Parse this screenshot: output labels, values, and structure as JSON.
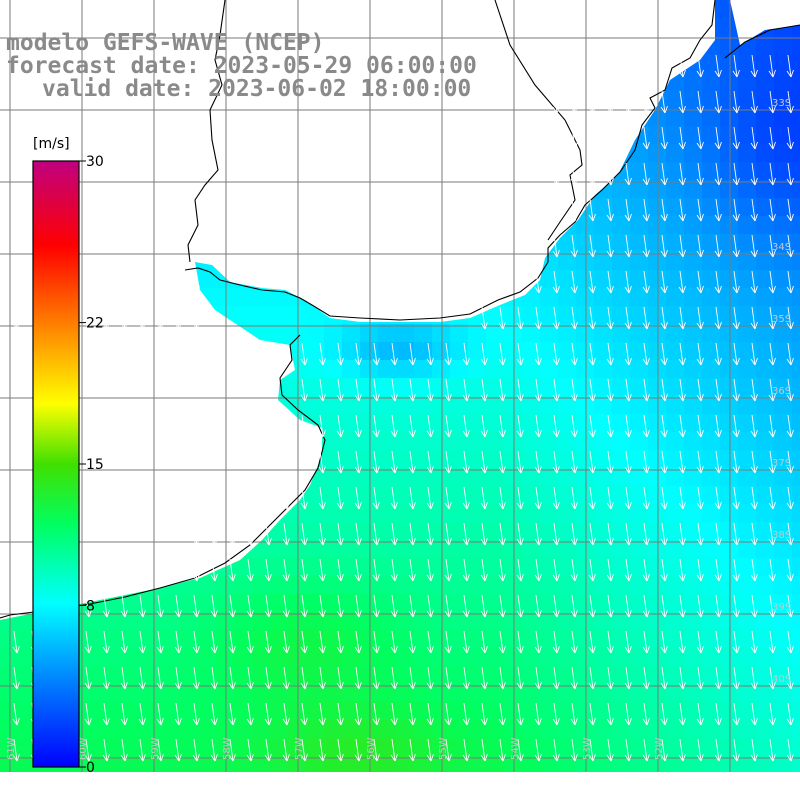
{
  "title": {
    "line1": "modelo GEFS-WAVE (NCEP)",
    "line2": "forecast date: 2023-05-29 06:00:00",
    "line3": "valid date: 2023-06-02 18:00:00"
  },
  "colorbar": {
    "unit": "[m/s]",
    "ticks": [
      {
        "value": 30,
        "label": "30"
      },
      {
        "value": 22,
        "label": "22"
      },
      {
        "value": 15,
        "label": "15"
      },
      {
        "value": 8,
        "label": "8"
      },
      {
        "value": 0,
        "label": "0"
      }
    ],
    "range": [
      0,
      30
    ],
    "colors": [
      "#0000ff",
      "#0090ff",
      "#00ffff",
      "#00ff40",
      "#00e000",
      "#ffff00",
      "#ff8000",
      "#ff0000",
      "#c00080"
    ]
  },
  "map": {
    "land_color": "#ffffff",
    "grid_color": "#7a7a7a",
    "coastline_color": "#000000",
    "arrow_color": "#ffffff",
    "field": "wind speed",
    "wind_direction": "from north / north-northwest",
    "longitude_labels": [
      "61W",
      "60W",
      "59W",
      "58W",
      "57W",
      "56W",
      "55W",
      "54W",
      "53W",
      "52W"
    ],
    "latitude_labels": [
      "33S",
      "34S",
      "35S",
      "36S",
      "37S",
      "38S",
      "39S",
      "40S"
    ]
  }
}
